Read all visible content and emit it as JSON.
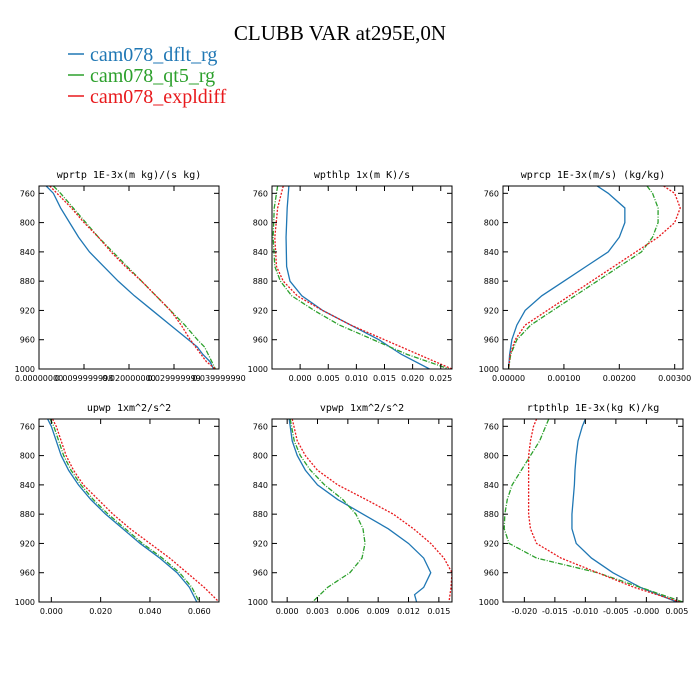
{
  "figure_title": "CLUBB VAR at295E,0N",
  "legend": [
    {
      "label": "cam078_dflt_rg",
      "color": "#1f77b4"
    },
    {
      "label": "cam078_qt5_rg",
      "color": "#2ca02c"
    },
    {
      "label": "cam078_expldiff",
      "color": "#e8191c"
    }
  ],
  "chart_data": [
    {
      "type": "line",
      "title": "wprtp  1E-3x(m kg)/(s kg)",
      "xlim": [
        0.0,
        1.0
      ],
      "ylim": [
        1000,
        750
      ],
      "yticks": [
        760,
        800,
        840,
        880,
        920,
        960,
        1000
      ],
      "xticks": [
        {
          "v": 0.0,
          "label": "0.00000000"
        },
        {
          "v": 0.25,
          "label": "0.0099999998"
        },
        {
          "v": 0.5,
          "label": "0.020000000"
        },
        {
          "v": 0.75,
          "label": "0.029999999"
        },
        {
          "v": 1.0,
          "label": "0.039999990"
        }
      ],
      "series": [
        {
          "name": "cam078_dflt_rg",
          "p": [
            750,
            760,
            780,
            800,
            820,
            840,
            860,
            880,
            900,
            920,
            940,
            960,
            970,
            980,
            990,
            1000
          ],
          "v": [
            0.04,
            0.08,
            0.12,
            0.17,
            0.22,
            0.28,
            0.36,
            0.44,
            0.53,
            0.63,
            0.73,
            0.83,
            0.88,
            0.91,
            0.95,
            0.97
          ]
        },
        {
          "name": "cam078_qt5_rg",
          "p": [
            750,
            760,
            780,
            800,
            820,
            840,
            860,
            880,
            900,
            920,
            940,
            960,
            970,
            980,
            990,
            1000
          ],
          "v": [
            0.08,
            0.12,
            0.19,
            0.26,
            0.33,
            0.41,
            0.49,
            0.57,
            0.65,
            0.73,
            0.81,
            0.88,
            0.92,
            0.94,
            0.96,
            0.98
          ]
        },
        {
          "name": "cam078_expldiff",
          "p": [
            750,
            760,
            780,
            800,
            820,
            840,
            860,
            880,
            900,
            920,
            940,
            960,
            970,
            980,
            990,
            1000
          ],
          "v": [
            0.06,
            0.1,
            0.18,
            0.25,
            0.33,
            0.4,
            0.48,
            0.57,
            0.65,
            0.73,
            0.79,
            0.84,
            0.87,
            0.9,
            0.93,
            0.98
          ]
        }
      ]
    },
    {
      "type": "line",
      "title": "wpthlp  1x(m K)/s",
      "xlim": [
        -0.005,
        0.027
      ],
      "ylim": [
        1000,
        750
      ],
      "yticks": [
        760,
        800,
        840,
        880,
        920,
        960,
        1000
      ],
      "xticks": [
        {
          "v": 0.0,
          "label": "0.000"
        },
        {
          "v": 0.005,
          "label": "0.005"
        },
        {
          "v": 0.01,
          "label": "0.010"
        },
        {
          "v": 0.015,
          "label": "0.015"
        },
        {
          "v": 0.02,
          "label": "0.020"
        },
        {
          "v": 0.025,
          "label": "0.025"
        }
      ],
      "series": [
        {
          "name": "cam078_dflt_rg",
          "p": [
            750,
            780,
            820,
            860,
            880,
            900,
            920,
            940,
            960,
            980,
            1000
          ],
          "v": [
            -0.002,
            -0.0023,
            -0.0025,
            -0.0024,
            -0.0018,
            0.0003,
            0.004,
            0.009,
            0.014,
            0.018,
            0.023
          ]
        },
        {
          "name": "cam078_qt5_rg",
          "p": [
            750,
            780,
            820,
            860,
            880,
            900,
            920,
            940,
            960,
            980,
            1000
          ],
          "v": [
            -0.004,
            -0.0046,
            -0.0048,
            -0.0045,
            -0.0035,
            -0.0015,
            0.0025,
            0.007,
            0.013,
            0.019,
            0.0265
          ]
        },
        {
          "name": "cam078_expldiff",
          "p": [
            750,
            780,
            820,
            860,
            880,
            900,
            920,
            940,
            960,
            980,
            1000
          ],
          "v": [
            -0.003,
            -0.004,
            -0.0045,
            -0.0042,
            -0.003,
            -0.0005,
            0.004,
            0.009,
            0.015,
            0.021,
            0.027
          ]
        }
      ]
    },
    {
      "type": "line",
      "title": "wprcp  1E-3x(m/s) (kg/kg)",
      "xlim": [
        -0.0001,
        0.00315
      ],
      "ylim": [
        1000,
        750
      ],
      "yticks": [
        760,
        800,
        840,
        880,
        920,
        960,
        1000
      ],
      "xticks": [
        {
          "v": 0.0,
          "label": "0.00000"
        },
        {
          "v": 0.001,
          "label": "0.00100"
        },
        {
          "v": 0.002,
          "label": "0.00200"
        },
        {
          "v": 0.003,
          "label": "0.00300"
        }
      ],
      "series": [
        {
          "name": "cam078_dflt_rg",
          "p": [
            750,
            760,
            780,
            800,
            820,
            840,
            860,
            880,
            900,
            920,
            940,
            960,
            980,
            1000
          ],
          "v": [
            0.0016,
            0.0018,
            0.0021,
            0.0021,
            0.002,
            0.0018,
            0.0014,
            0.001,
            0.0006,
            0.0003,
            0.00015,
            6e-05,
            2e-05,
            0.0
          ]
        },
        {
          "name": "cam078_qt5_rg",
          "p": [
            750,
            760,
            780,
            800,
            820,
            840,
            860,
            880,
            900,
            920,
            940,
            960,
            980,
            1000
          ],
          "v": [
            0.0025,
            0.0026,
            0.0027,
            0.0027,
            0.0026,
            0.0024,
            0.002,
            0.0016,
            0.0012,
            0.0008,
            0.0004,
            0.00015,
            4e-05,
            0.0
          ]
        },
        {
          "name": "cam078_expldiff",
          "p": [
            750,
            760,
            780,
            800,
            820,
            840,
            860,
            880,
            900,
            920,
            940,
            960,
            980,
            1000
          ],
          "v": [
            0.0028,
            0.003,
            0.0031,
            0.003,
            0.0027,
            0.0023,
            0.0019,
            0.0015,
            0.0011,
            0.0007,
            0.0003,
            0.00012,
            3e-05,
            0.0
          ]
        }
      ]
    },
    {
      "type": "line",
      "title": "upwp  1xm^2/s^2",
      "xlim": [
        -0.005,
        0.068
      ],
      "ylim": [
        1000,
        750
      ],
      "yticks": [
        760,
        800,
        840,
        880,
        920,
        960,
        1000
      ],
      "xticks": [
        {
          "v": 0.0,
          "label": "0.000"
        },
        {
          "v": 0.02,
          "label": "0.020"
        },
        {
          "v": 0.04,
          "label": "0.040"
        },
        {
          "v": 0.06,
          "label": "0.060"
        }
      ],
      "series": [
        {
          "name": "cam078_dflt_rg",
          "p": [
            750,
            760,
            780,
            800,
            820,
            840,
            860,
            880,
            900,
            920,
            940,
            960,
            980,
            1000
          ],
          "v": [
            -0.0015,
            0.0,
            0.002,
            0.004,
            0.007,
            0.011,
            0.016,
            0.022,
            0.029,
            0.036,
            0.044,
            0.051,
            0.056,
            0.059
          ]
        },
        {
          "name": "cam078_qt5_rg",
          "p": [
            750,
            760,
            780,
            800,
            820,
            840,
            860,
            880,
            900,
            920,
            940,
            960,
            980,
            1000
          ],
          "v": [
            -0.0005,
            0.001,
            0.003,
            0.005,
            0.008,
            0.012,
            0.017,
            0.023,
            0.03,
            0.037,
            0.045,
            0.052,
            0.057,
            0.06
          ]
        },
        {
          "name": "cam078_expldiff",
          "p": [
            750,
            760,
            780,
            800,
            820,
            840,
            860,
            880,
            900,
            920,
            940,
            960,
            980,
            1000
          ],
          "v": [
            0.0005,
            0.002,
            0.004,
            0.006,
            0.009,
            0.013,
            0.019,
            0.025,
            0.032,
            0.04,
            0.048,
            0.055,
            0.062,
            0.068
          ]
        }
      ]
    },
    {
      "type": "line",
      "title": "vpwp  1xm^2/s^2",
      "xlim": [
        -0.0015,
        0.0163
      ],
      "ylim": [
        1000,
        750
      ],
      "yticks": [
        760,
        800,
        840,
        880,
        920,
        960,
        1000
      ],
      "xticks": [
        {
          "v": 0.0,
          "label": "0.000"
        },
        {
          "v": 0.003,
          "label": "0.003"
        },
        {
          "v": 0.006,
          "label": "0.006"
        },
        {
          "v": 0.009,
          "label": "0.009"
        },
        {
          "v": 0.012,
          "label": "0.012"
        },
        {
          "v": 0.015,
          "label": "0.015"
        }
      ],
      "series": [
        {
          "name": "cam078_dflt_rg",
          "p": [
            750,
            780,
            800,
            820,
            840,
            860,
            880,
            900,
            920,
            940,
            960,
            980,
            990,
            1000
          ],
          "v": [
            0.0002,
            0.0005,
            0.001,
            0.0018,
            0.003,
            0.005,
            0.0075,
            0.01,
            0.012,
            0.0135,
            0.0142,
            0.0135,
            0.0126,
            0.0128
          ]
        },
        {
          "name": "cam078_qt5_rg",
          "p": [
            750,
            780,
            800,
            820,
            840,
            860,
            880,
            900,
            920,
            940,
            960,
            980,
            1000
          ],
          "v": [
            0.0003,
            0.0007,
            0.0013,
            0.0023,
            0.0037,
            0.0055,
            0.0068,
            0.0075,
            0.0077,
            0.0074,
            0.0062,
            0.004,
            0.0025
          ]
        },
        {
          "name": "cam078_expldiff",
          "p": [
            750,
            780,
            800,
            820,
            840,
            860,
            880,
            900,
            920,
            940,
            960,
            980,
            1000
          ],
          "v": [
            0.0005,
            0.001,
            0.0018,
            0.003,
            0.005,
            0.0078,
            0.0105,
            0.0125,
            0.0142,
            0.0155,
            0.0163,
            0.0162,
            0.016
          ]
        }
      ]
    },
    {
      "type": "line",
      "title": "rtpthlp  1E-3x(kg K)/kg",
      "xlim": [
        -0.0235,
        0.006
      ],
      "ylim": [
        1000,
        750
      ],
      "yticks": [
        760,
        800,
        840,
        880,
        920,
        960,
        1000
      ],
      "xticks": [
        {
          "v": -0.02,
          "label": "-0.020"
        },
        {
          "v": -0.015,
          "label": "-0.015"
        },
        {
          "v": -0.01,
          "label": "-0.010"
        },
        {
          "v": -0.005,
          "label": "-0.005"
        },
        {
          "v": 0.0,
          "label": "-0.000"
        },
        {
          "v": 0.005,
          "label": "0.005"
        }
      ],
      "series": [
        {
          "name": "cam078_dflt_rg",
          "p": [
            750,
            760,
            780,
            800,
            820,
            840,
            860,
            880,
            900,
            920,
            940,
            960,
            980,
            1000
          ],
          "v": [
            -0.01,
            -0.0105,
            -0.0112,
            -0.0115,
            -0.0117,
            -0.0118,
            -0.012,
            -0.0122,
            -0.0122,
            -0.0115,
            -0.009,
            -0.0055,
            -0.001,
            0.005
          ]
        },
        {
          "name": "cam078_qt5_rg",
          "p": [
            750,
            760,
            780,
            800,
            820,
            840,
            860,
            880,
            900,
            920,
            940,
            960,
            980,
            1000
          ],
          "v": [
            -0.016,
            -0.0165,
            -0.0175,
            -0.019,
            -0.0205,
            -0.022,
            -0.0228,
            -0.0232,
            -0.0233,
            -0.0225,
            -0.018,
            -0.008,
            -0.001,
            0.006
          ]
        },
        {
          "name": "cam078_expldiff",
          "p": [
            750,
            760,
            780,
            800,
            820,
            840,
            860,
            880,
            900,
            920,
            940,
            960,
            980,
            1000
          ],
          "v": [
            -0.018,
            -0.0185,
            -0.019,
            -0.0193,
            -0.0193,
            -0.0193,
            -0.0193,
            -0.0193,
            -0.019,
            -0.018,
            -0.014,
            -0.008,
            -0.002,
            0.0055
          ]
        }
      ]
    }
  ]
}
